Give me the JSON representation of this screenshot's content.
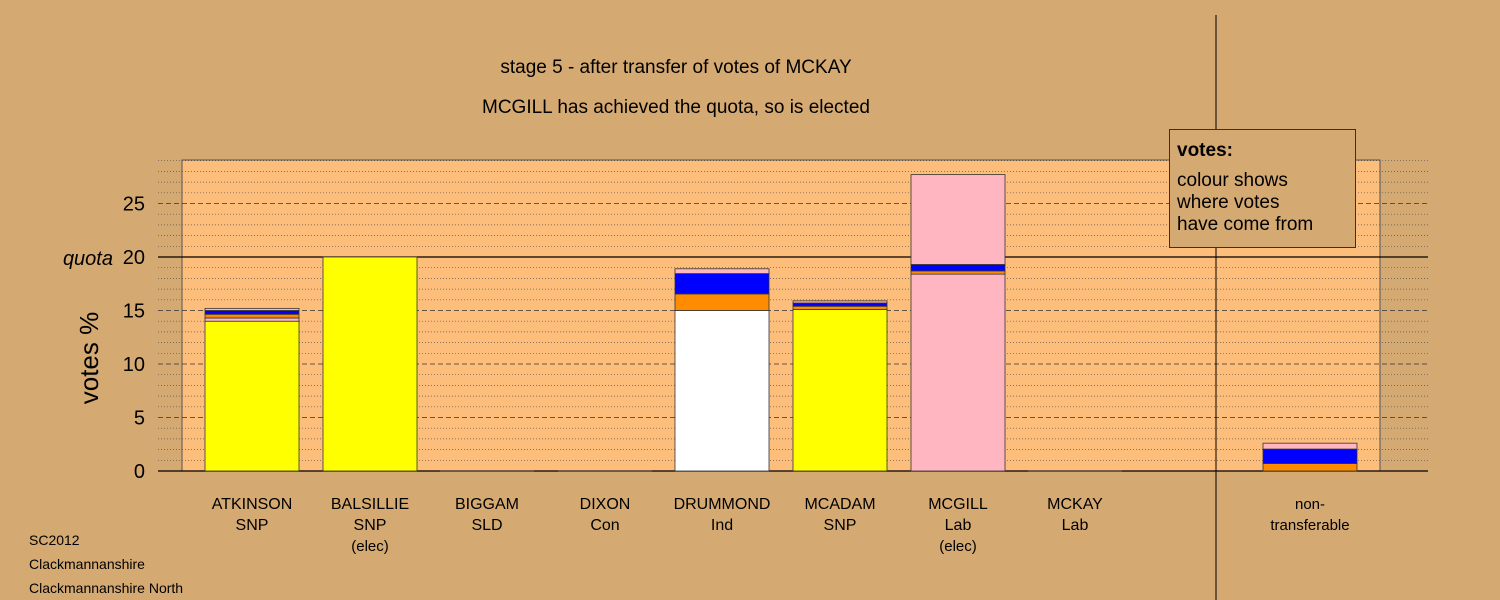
{
  "chart_data": {
    "type": "bar",
    "stacked": true,
    "title": "stage 5 - after transfer of votes of MCKAY",
    "subtitle": "MCGILL has achieved the quota, so is elected",
    "ylabel": "votes %",
    "ylim": [
      0,
      29
    ],
    "yticks": [
      0,
      5,
      10,
      15,
      20,
      25
    ],
    "quota": 20,
    "quota_label": "quota",
    "grid": true,
    "legend_placement": "top-right",
    "categories": [
      {
        "name": "ATKINSON",
        "party": "SNP",
        "note": ""
      },
      {
        "name": "BALSILLIE",
        "party": "SNP",
        "note": "(elec)"
      },
      {
        "name": "BIGGAM",
        "party": "SLD",
        "note": ""
      },
      {
        "name": "DIXON",
        "party": "Con",
        "note": ""
      },
      {
        "name": "DRUMMOND",
        "party": "Ind",
        "note": ""
      },
      {
        "name": "MCADAM",
        "party": "SNP",
        "note": ""
      },
      {
        "name": "MCGILL",
        "party": "Lab",
        "note": "(elec)"
      },
      {
        "name": "MCKAY",
        "party": "Lab",
        "note": ""
      },
      {
        "name": "non-",
        "party": "transferable",
        "note": ""
      }
    ],
    "segments": [
      [
        {
          "value": 14.0,
          "color": "#ffff00"
        },
        {
          "value": 0.3,
          "color": "#ffb6c1"
        },
        {
          "value": 0.35,
          "color": "#ff8c00"
        },
        {
          "value": 0.35,
          "color": "#0000ff"
        },
        {
          "value": 0.2,
          "color": "#ffb6c1"
        }
      ],
      [
        {
          "value": 20.0,
          "color": "#ffff00"
        }
      ],
      [],
      [],
      [
        {
          "value": 15.0,
          "color": "#ffffff"
        },
        {
          "value": 1.55,
          "color": "#ff8c00"
        },
        {
          "value": 1.9,
          "color": "#0000ff"
        },
        {
          "value": 0.45,
          "color": "#ffb6c1"
        }
      ],
      [
        {
          "value": 15.1,
          "color": "#ffff00"
        },
        {
          "value": 0.3,
          "color": "#ff8c00"
        },
        {
          "value": 0.3,
          "color": "#0000ff"
        },
        {
          "value": 0.2,
          "color": "#ffb6c1"
        }
      ],
      [
        {
          "value": 18.4,
          "color": "#ffb6c1"
        },
        {
          "value": 0.3,
          "color": "#ff8c00"
        },
        {
          "value": 0.6,
          "color": "#0000ff"
        },
        {
          "value": 8.4,
          "color": "#ffb6c1"
        }
      ],
      [],
      [
        {
          "value": 0.7,
          "color": "#ff8c00"
        },
        {
          "value": 1.35,
          "color": "#0000ff"
        },
        {
          "value": 0.55,
          "color": "#ffb6c1"
        }
      ]
    ],
    "colors": {
      "background": "#d5a972",
      "plot_background": "#fdbe7c",
      "snp": "#ffff00",
      "lab": "#ffb6c1",
      "ind": "#ffffff",
      "transfer_orange": "#ff8c00",
      "transfer_blue": "#0000ff"
    }
  },
  "legend": {
    "title": "votes:",
    "lines": [
      "colour shows",
      "where votes",
      "have come from"
    ]
  },
  "footer": {
    "lines": [
      "SC2012",
      "Clackmannanshire",
      "Clackmannanshire North"
    ]
  }
}
